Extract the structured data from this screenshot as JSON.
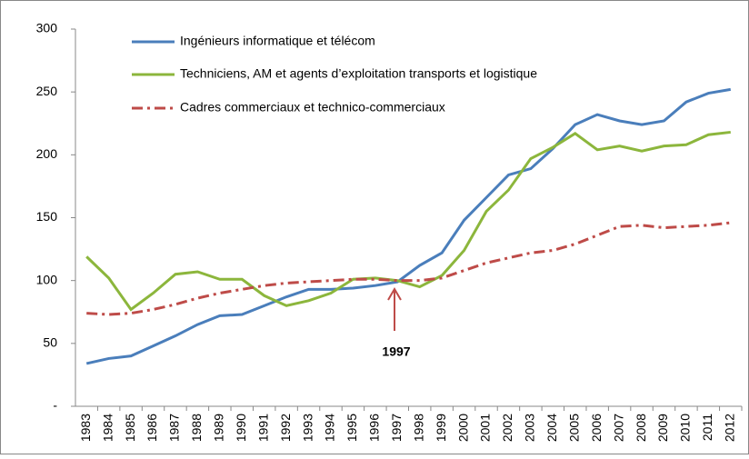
{
  "chart_data": {
    "type": "line",
    "categories": [
      "1983",
      "1984",
      "1985",
      "1986",
      "1987",
      "1988",
      "1989",
      "1990",
      "1991",
      "1992",
      "1993",
      "1994",
      "1995",
      "1996",
      "1997",
      "1998",
      "1999",
      "2000",
      "2001",
      "2002",
      "2003",
      "2004",
      "2005",
      "2006",
      "2007",
      "2008",
      "2009",
      "2010",
      "2011",
      "2012"
    ],
    "series": [
      {
        "name": "Ingénieurs informatique et télécom",
        "color": "#4a7ebb",
        "dash": "solid",
        "values": [
          34,
          38,
          40,
          48,
          56,
          65,
          72,
          73,
          80,
          87,
          93,
          93,
          94,
          96,
          99,
          112,
          122,
          148,
          166,
          184,
          189,
          205,
          224,
          232,
          227,
          224,
          227,
          242,
          249,
          252
        ]
      },
      {
        "name": "Techniciens, AM et agents d’exploitation transports et logistique",
        "color": "#8cb63c",
        "dash": "solid",
        "values": [
          119,
          102,
          77,
          90,
          105,
          107,
          101,
          101,
          88,
          80,
          84,
          90,
          101,
          102,
          100,
          95,
          104,
          124,
          155,
          172,
          197,
          206,
          217,
          204,
          207,
          203,
          207,
          208,
          216,
          218
        ]
      },
      {
        "name": "Cadres commerciaux et technico-commerciaux",
        "color": "#be4b48",
        "dash": "dashdot",
        "values": [
          74,
          73,
          74,
          77,
          81,
          86,
          90,
          93,
          96,
          98,
          99,
          100,
          101,
          101,
          100,
          100,
          102,
          108,
          114,
          118,
          122,
          124,
          129,
          136,
          143,
          144,
          142,
          143,
          144,
          146
        ]
      }
    ],
    "ylim": [
      0,
      300
    ],
    "yticks": [
      {
        "value": 0,
        "label": "-"
      },
      50,
      100,
      150,
      200,
      250,
      300
    ],
    "annotation": "1997"
  }
}
